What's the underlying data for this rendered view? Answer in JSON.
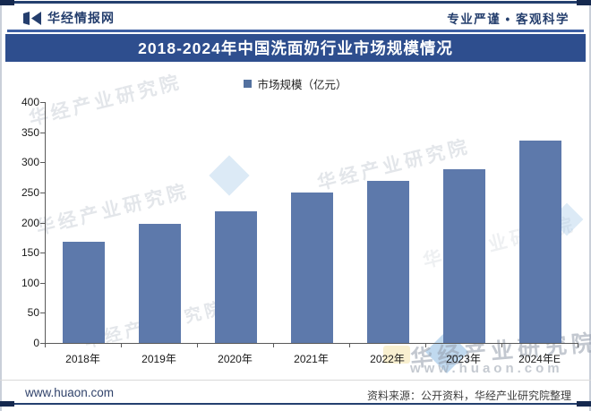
{
  "header": {
    "brand": "华经情报网",
    "slogan": "专业严谨 • 客观科学"
  },
  "title_banner": "2018-2024年中国洗面奶行业市场规模情况",
  "legend": {
    "label": "市场规模（亿元）"
  },
  "chart_data": {
    "type": "bar",
    "title": "2018-2024年中国洗面奶行业市场规模情况",
    "categories": [
      "2018年",
      "2019年",
      "2020年",
      "2021年",
      "2022年",
      "2023年",
      "2024年E"
    ],
    "values": [
      168,
      198,
      219,
      250,
      269,
      288,
      336
    ],
    "series_name": "市场规模",
    "unit": "亿元",
    "xlabel": "",
    "ylabel": "",
    "ylim": [
      0,
      400
    ],
    "yticks": [
      0,
      50,
      100,
      150,
      200,
      250,
      300,
      350,
      400
    ],
    "grid": false,
    "legend_position": "top",
    "bar_color": "#5d79ab"
  },
  "watermarks": {
    "diagonal": "华经产业研究院",
    "url": "www.huaon.com"
  },
  "footer": {
    "site": "www.huaon.com",
    "source": "资料来源：公开资料，华经产业研究院整理"
  },
  "colors": {
    "banner": "#2e4e8e",
    "bar": "#5d79ab",
    "brand_navy": "#243e6d",
    "axis": "#595959"
  }
}
